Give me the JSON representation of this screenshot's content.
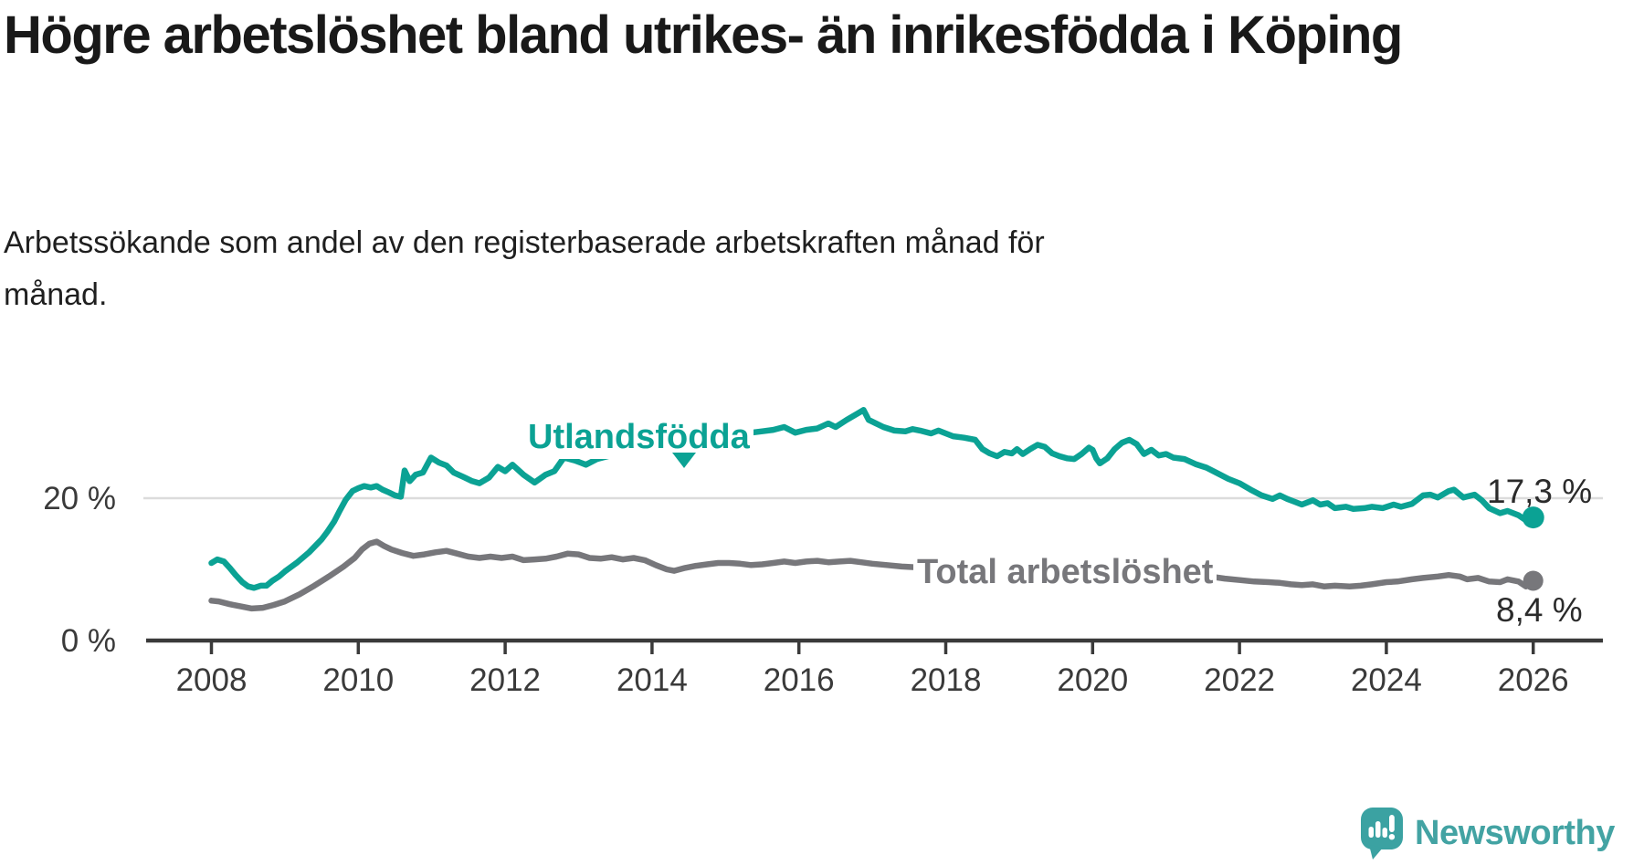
{
  "header": {
    "title": "Högre arbetslöshet bland utrikes- än inrikesfödda i Köping",
    "subtitle": "Arbetssökande som andel av den registerbaserade arbetskraften månad för\nmånad."
  },
  "footer": {
    "brand": "Newsworthy",
    "brand_color": "#43a3a3",
    "logo_icon": "newsworthy-speech-bubble-barchart-icon"
  },
  "colors": {
    "utlandsfodda": "#0ba294",
    "total": "#77777b",
    "axis": "#3a3a3a",
    "gridline": "#dcdcdc",
    "title_text": "#191919"
  },
  "chart_data": {
    "type": "line",
    "title": "Högre arbetslöshet bland utrikes- än inrikesfödda i Köping",
    "subtitle": "Arbetssökande som andel av den registerbaserade arbetskraften månad för månad.",
    "xlabel": "",
    "ylabel": "",
    "x_unit": "year (monthly data)",
    "y_unit": "%",
    "xlim": [
      2007.1,
      2026.95
    ],
    "ylim": [
      0,
      34
    ],
    "grid": "single horizontal gridline at 20 %",
    "legend_position": "inline labels on lines",
    "x_ticks": [
      2008,
      2010,
      2012,
      2014,
      2016,
      2018,
      2020,
      2022,
      2024,
      2026
    ],
    "y_ticks": [
      {
        "value": 20,
        "label": "20 %"
      },
      {
        "value": 0,
        "label": "0 %"
      }
    ],
    "series": [
      {
        "name": "Utlandsfödda",
        "color": "#0ba294",
        "end_label": "17,3 %",
        "end_value": 17.3,
        "points": [
          [
            2008.0,
            10.9
          ],
          [
            2008.08,
            11.4
          ],
          [
            2008.17,
            11.1
          ],
          [
            2008.25,
            10.2
          ],
          [
            2008.33,
            9.2
          ],
          [
            2008.42,
            8.2
          ],
          [
            2008.5,
            7.6
          ],
          [
            2008.58,
            7.4
          ],
          [
            2008.67,
            7.7
          ],
          [
            2008.75,
            7.7
          ],
          [
            2008.83,
            8.4
          ],
          [
            2008.92,
            9.0
          ],
          [
            2009.0,
            9.7
          ],
          [
            2009.17,
            11.0
          ],
          [
            2009.33,
            12.4
          ],
          [
            2009.5,
            14.2
          ],
          [
            2009.58,
            15.3
          ],
          [
            2009.67,
            16.7
          ],
          [
            2009.75,
            18.3
          ],
          [
            2009.83,
            19.8
          ],
          [
            2009.92,
            21.0
          ],
          [
            2010.0,
            21.4
          ],
          [
            2010.08,
            21.7
          ],
          [
            2010.17,
            21.5
          ],
          [
            2010.25,
            21.7
          ],
          [
            2010.33,
            21.2
          ],
          [
            2010.42,
            20.8
          ],
          [
            2010.5,
            20.4
          ],
          [
            2010.58,
            20.2
          ],
          [
            2010.63,
            23.9
          ],
          [
            2010.7,
            22.4
          ],
          [
            2010.78,
            23.3
          ],
          [
            2010.88,
            23.6
          ],
          [
            2010.99,
            25.7
          ],
          [
            2011.1,
            25.0
          ],
          [
            2011.2,
            24.6
          ],
          [
            2011.3,
            23.6
          ],
          [
            2011.45,
            22.9
          ],
          [
            2011.55,
            22.4
          ],
          [
            2011.65,
            22.1
          ],
          [
            2011.78,
            22.9
          ],
          [
            2011.9,
            24.4
          ],
          [
            2012.0,
            23.8
          ],
          [
            2012.1,
            24.7
          ],
          [
            2012.25,
            23.3
          ],
          [
            2012.4,
            22.2
          ],
          [
            2012.55,
            23.3
          ],
          [
            2012.67,
            23.8
          ],
          [
            2012.8,
            25.7
          ],
          [
            2012.95,
            25.3
          ],
          [
            2013.1,
            24.7
          ],
          [
            2013.25,
            25.5
          ],
          [
            2013.4,
            25.9
          ],
          [
            2013.55,
            26.3
          ],
          [
            2013.7,
            27.1
          ],
          [
            2013.85,
            27.8
          ],
          [
            2014.0,
            28.2
          ],
          [
            2014.15,
            27.9
          ],
          [
            2014.3,
            27.8
          ],
          [
            2014.45,
            28.2
          ],
          [
            2014.6,
            28.0
          ],
          [
            2014.75,
            28.2
          ],
          [
            2014.9,
            28.5
          ],
          [
            2015.05,
            28.8
          ],
          [
            2015.2,
            28.7
          ],
          [
            2015.35,
            29.2
          ],
          [
            2015.5,
            29.4
          ],
          [
            2015.65,
            29.6
          ],
          [
            2015.8,
            30.0
          ],
          [
            2015.95,
            29.2
          ],
          [
            2016.1,
            29.6
          ],
          [
            2016.25,
            29.8
          ],
          [
            2016.4,
            30.5
          ],
          [
            2016.5,
            30.0
          ],
          [
            2016.65,
            31.0
          ],
          [
            2016.8,
            31.9
          ],
          [
            2016.88,
            32.4
          ],
          [
            2016.95,
            31.0
          ],
          [
            2017.05,
            30.5
          ],
          [
            2017.15,
            30.0
          ],
          [
            2017.3,
            29.5
          ],
          [
            2017.45,
            29.4
          ],
          [
            2017.55,
            29.7
          ],
          [
            2017.65,
            29.5
          ],
          [
            2017.8,
            29.1
          ],
          [
            2017.9,
            29.5
          ],
          [
            2018.0,
            29.1
          ],
          [
            2018.1,
            28.7
          ],
          [
            2018.25,
            28.5
          ],
          [
            2018.4,
            28.2
          ],
          [
            2018.5,
            26.9
          ],
          [
            2018.6,
            26.3
          ],
          [
            2018.7,
            25.9
          ],
          [
            2018.8,
            26.5
          ],
          [
            2018.9,
            26.3
          ],
          [
            2018.97,
            26.9
          ],
          [
            2019.05,
            26.2
          ],
          [
            2019.15,
            26.9
          ],
          [
            2019.25,
            27.5
          ],
          [
            2019.35,
            27.2
          ],
          [
            2019.45,
            26.3
          ],
          [
            2019.55,
            25.9
          ],
          [
            2019.65,
            25.6
          ],
          [
            2019.75,
            25.5
          ],
          [
            2019.85,
            26.2
          ],
          [
            2019.95,
            27.1
          ],
          [
            2020.0,
            26.8
          ],
          [
            2020.05,
            25.6
          ],
          [
            2020.1,
            24.9
          ],
          [
            2020.2,
            25.6
          ],
          [
            2020.3,
            26.9
          ],
          [
            2020.4,
            27.8
          ],
          [
            2020.5,
            28.2
          ],
          [
            2020.6,
            27.6
          ],
          [
            2020.7,
            26.2
          ],
          [
            2020.8,
            26.8
          ],
          [
            2020.9,
            26.0
          ],
          [
            2021.0,
            26.2
          ],
          [
            2021.1,
            25.7
          ],
          [
            2021.25,
            25.5
          ],
          [
            2021.4,
            24.8
          ],
          [
            2021.55,
            24.3
          ],
          [
            2021.7,
            23.5
          ],
          [
            2021.85,
            22.7
          ],
          [
            2022.0,
            22.1
          ],
          [
            2022.15,
            21.2
          ],
          [
            2022.3,
            20.4
          ],
          [
            2022.45,
            19.9
          ],
          [
            2022.55,
            20.4
          ],
          [
            2022.65,
            19.9
          ],
          [
            2022.75,
            19.5
          ],
          [
            2022.85,
            19.1
          ],
          [
            2023.0,
            19.7
          ],
          [
            2023.1,
            19.1
          ],
          [
            2023.2,
            19.3
          ],
          [
            2023.3,
            18.6
          ],
          [
            2023.45,
            18.8
          ],
          [
            2023.55,
            18.5
          ],
          [
            2023.7,
            18.6
          ],
          [
            2023.8,
            18.8
          ],
          [
            2023.95,
            18.6
          ],
          [
            2024.1,
            19.1
          ],
          [
            2024.2,
            18.8
          ],
          [
            2024.35,
            19.2
          ],
          [
            2024.5,
            20.4
          ],
          [
            2024.6,
            20.5
          ],
          [
            2024.7,
            20.1
          ],
          [
            2024.85,
            21.0
          ],
          [
            2024.92,
            21.2
          ],
          [
            2025.05,
            20.1
          ],
          [
            2025.2,
            20.5
          ],
          [
            2025.3,
            19.7
          ],
          [
            2025.4,
            18.6
          ],
          [
            2025.55,
            17.9
          ],
          [
            2025.65,
            18.2
          ],
          [
            2025.8,
            17.6
          ],
          [
            2025.9,
            16.9
          ],
          [
            2026.0,
            17.3
          ]
        ]
      },
      {
        "name": "Total arbetslöshet",
        "color": "#77777b",
        "end_label": "8,4 %",
        "end_value": 8.4,
        "points": [
          [
            2008.0,
            5.6
          ],
          [
            2008.1,
            5.5
          ],
          [
            2008.25,
            5.1
          ],
          [
            2008.4,
            4.8
          ],
          [
            2008.55,
            4.5
          ],
          [
            2008.7,
            4.6
          ],
          [
            2008.85,
            5.0
          ],
          [
            2009.0,
            5.5
          ],
          [
            2009.2,
            6.5
          ],
          [
            2009.4,
            7.7
          ],
          [
            2009.6,
            9.0
          ],
          [
            2009.8,
            10.4
          ],
          [
            2009.95,
            11.6
          ],
          [
            2010.05,
            12.8
          ],
          [
            2010.15,
            13.6
          ],
          [
            2010.25,
            13.9
          ],
          [
            2010.35,
            13.3
          ],
          [
            2010.45,
            12.8
          ],
          [
            2010.6,
            12.3
          ],
          [
            2010.75,
            11.9
          ],
          [
            2010.9,
            12.1
          ],
          [
            2011.05,
            12.4
          ],
          [
            2011.2,
            12.6
          ],
          [
            2011.35,
            12.2
          ],
          [
            2011.5,
            11.8
          ],
          [
            2011.65,
            11.6
          ],
          [
            2011.8,
            11.8
          ],
          [
            2011.95,
            11.6
          ],
          [
            2012.1,
            11.8
          ],
          [
            2012.25,
            11.3
          ],
          [
            2012.4,
            11.4
          ],
          [
            2012.55,
            11.5
          ],
          [
            2012.7,
            11.8
          ],
          [
            2012.85,
            12.2
          ],
          [
            2013.0,
            12.1
          ],
          [
            2013.15,
            11.6
          ],
          [
            2013.3,
            11.5
          ],
          [
            2013.45,
            11.7
          ],
          [
            2013.6,
            11.4
          ],
          [
            2013.75,
            11.6
          ],
          [
            2013.9,
            11.3
          ],
          [
            2014.05,
            10.6
          ],
          [
            2014.2,
            10.0
          ],
          [
            2014.3,
            9.8
          ],
          [
            2014.45,
            10.2
          ],
          [
            2014.6,
            10.5
          ],
          [
            2014.75,
            10.7
          ],
          [
            2014.9,
            10.9
          ],
          [
            2015.05,
            10.9
          ],
          [
            2015.2,
            10.8
          ],
          [
            2015.35,
            10.6
          ],
          [
            2015.5,
            10.7
          ],
          [
            2015.65,
            10.9
          ],
          [
            2015.8,
            11.1
          ],
          [
            2015.95,
            10.9
          ],
          [
            2016.1,
            11.1
          ],
          [
            2016.25,
            11.2
          ],
          [
            2016.4,
            11.0
          ],
          [
            2016.55,
            11.1
          ],
          [
            2016.7,
            11.2
          ],
          [
            2016.85,
            11.0
          ],
          [
            2017.0,
            10.8
          ],
          [
            2017.2,
            10.6
          ],
          [
            2017.4,
            10.4
          ],
          [
            2017.6,
            10.3
          ],
          [
            2017.8,
            10.2
          ],
          [
            2018.0,
            10.1
          ],
          [
            2018.2,
            10.0
          ],
          [
            2018.4,
            9.9
          ],
          [
            2018.6,
            9.7
          ],
          [
            2018.8,
            9.6
          ],
          [
            2019.0,
            9.5
          ],
          [
            2019.2,
            9.4
          ],
          [
            2019.4,
            9.3
          ],
          [
            2019.6,
            9.3
          ],
          [
            2019.8,
            9.4
          ],
          [
            2020.0,
            9.6
          ],
          [
            2020.2,
            10.0
          ],
          [
            2020.4,
            10.3
          ],
          [
            2020.6,
            10.2
          ],
          [
            2020.8,
            10.0
          ],
          [
            2021.0,
            9.8
          ],
          [
            2021.2,
            9.6
          ],
          [
            2021.4,
            9.3
          ],
          [
            2021.6,
            9.0
          ],
          [
            2021.8,
            8.7
          ],
          [
            2022.0,
            8.5
          ],
          [
            2022.2,
            8.3
          ],
          [
            2022.4,
            8.2
          ],
          [
            2022.55,
            8.1
          ],
          [
            2022.7,
            7.9
          ],
          [
            2022.85,
            7.8
          ],
          [
            2023.0,
            7.9
          ],
          [
            2023.15,
            7.6
          ],
          [
            2023.3,
            7.7
          ],
          [
            2023.5,
            7.6
          ],
          [
            2023.65,
            7.7
          ],
          [
            2023.8,
            7.9
          ],
          [
            2024.0,
            8.2
          ],
          [
            2024.15,
            8.3
          ],
          [
            2024.35,
            8.6
          ],
          [
            2024.5,
            8.8
          ],
          [
            2024.7,
            9.0
          ],
          [
            2024.85,
            9.2
          ],
          [
            2025.0,
            9.0
          ],
          [
            2025.1,
            8.6
          ],
          [
            2025.25,
            8.8
          ],
          [
            2025.4,
            8.3
          ],
          [
            2025.55,
            8.2
          ],
          [
            2025.65,
            8.6
          ],
          [
            2025.8,
            8.3
          ],
          [
            2025.9,
            7.6
          ],
          [
            2026.0,
            8.4
          ]
        ]
      }
    ]
  }
}
